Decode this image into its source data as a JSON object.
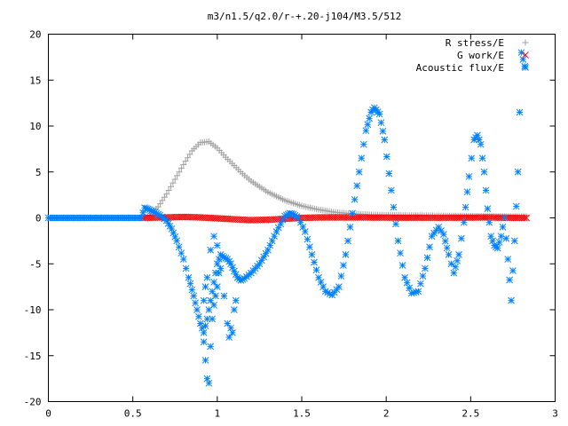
{
  "chart_data": {
    "type": "scatter",
    "title": "m3/n1.5/q2.0/r-+.20-j104/M3.5/512",
    "xlabel": "",
    "ylabel": "",
    "xlim": [
      0,
      3
    ],
    "ylim": [
      -20,
      20
    ],
    "xticks": [
      0,
      0.5,
      1,
      1.5,
      2,
      2.5,
      3
    ],
    "xtick_labels": [
      "0",
      "0.5",
      "1",
      "1.5",
      "2",
      "2.5",
      "3"
    ],
    "yticks": [
      -20,
      -15,
      -10,
      -5,
      0,
      5,
      10,
      15,
      20
    ],
    "ytick_labels": [
      "-20",
      "-15",
      "-10",
      "-5",
      "0",
      "5",
      "10",
      "15",
      "20"
    ],
    "grid": false,
    "legend_position": "top-right",
    "series": [
      {
        "name": "R stress/E",
        "marker": "plus",
        "color": "#a0a0a0",
        "x": [
          0.56,
          0.6,
          0.65,
          0.7,
          0.75,
          0.8,
          0.85,
          0.9,
          0.95,
          1.0,
          1.05,
          1.1,
          1.15,
          1.2,
          1.3,
          1.4,
          1.5,
          1.6,
          1.7,
          1.8,
          1.9,
          2.0,
          2.1,
          2.2,
          2.3,
          2.4,
          2.5,
          2.6,
          2.7,
          2.8,
          2.83
        ],
        "y": [
          0.0,
          0.3,
          1.2,
          2.6,
          4.2,
          5.8,
          7.3,
          8.2,
          8.3,
          7.6,
          6.6,
          5.7,
          4.8,
          4.0,
          2.8,
          1.9,
          1.3,
          0.9,
          0.6,
          0.45,
          0.35,
          0.3,
          0.28,
          0.26,
          0.24,
          0.22,
          0.2,
          0.18,
          0.16,
          0.15,
          0.15
        ]
      },
      {
        "name": "G work/E",
        "marker": "cross",
        "color": "#ff0000",
        "x": [
          0.56,
          0.7,
          0.8,
          0.9,
          1.0,
          1.1,
          1.2,
          1.3,
          1.4,
          1.5,
          1.6,
          1.7,
          1.8,
          2.0,
          2.2,
          2.4,
          2.6,
          2.7,
          2.83
        ],
        "y": [
          0.0,
          0.05,
          0.1,
          0.05,
          -0.05,
          -0.15,
          -0.25,
          -0.2,
          -0.1,
          0.0,
          0.05,
          0.05,
          0.05,
          0.03,
          0.02,
          0.02,
          0.05,
          0.02,
          0.0
        ]
      },
      {
        "name": "Acoustic flux/E",
        "marker": "star",
        "color": "#0080ff",
        "x": [
          0.0,
          0.1,
          0.2,
          0.3,
          0.4,
          0.5,
          0.55,
          0.57,
          0.6,
          0.63,
          0.66,
          0.7,
          0.73,
          0.76,
          0.8,
          0.83,
          0.86,
          0.88,
          0.9,
          0.92,
          0.94,
          0.96,
          0.98,
          1.0,
          1.02,
          1.04,
          1.06,
          1.08,
          1.1,
          1.12,
          1.14,
          1.16,
          1.2,
          1.25,
          1.3,
          1.35,
          1.4,
          1.43,
          1.45,
          1.48,
          1.52,
          1.56,
          1.6,
          1.64,
          1.68,
          1.72,
          1.76,
          1.8,
          1.84,
          1.88,
          1.91,
          1.93,
          1.96,
          1.99,
          2.03,
          2.07,
          2.11,
          2.15,
          2.19,
          2.23,
          2.27,
          2.31,
          2.34,
          2.37,
          2.4,
          2.43,
          2.46,
          2.49,
          2.52,
          2.54,
          2.56,
          2.58,
          2.6,
          2.62,
          2.64,
          2.66,
          2.68,
          2.7,
          2.72,
          2.74,
          2.76,
          2.78,
          2.8,
          2.82,
          0.92,
          0.93,
          0.94,
          0.95,
          0.96,
          0.97,
          0.98,
          0.99,
          1.0,
          1.01,
          0.92,
          0.93,
          0.94,
          0.96,
          0.98,
          1.0,
          1.02,
          1.04,
          1.06,
          1.08,
          1.1,
          1.07,
          1.09,
          1.11
        ],
        "y": [
          0.0,
          0.0,
          0.0,
          0.0,
          0.0,
          0.0,
          0.0,
          1.1,
          0.9,
          0.6,
          0.3,
          -0.3,
          -1.2,
          -2.5,
          -4.5,
          -6.5,
          -8.5,
          -10.0,
          -11.5,
          -12.5,
          -11.0,
          -9.0,
          -7.0,
          -5.0,
          -4.0,
          -4.3,
          -4.5,
          -5.0,
          -5.8,
          -6.5,
          -6.8,
          -6.6,
          -6.0,
          -5.0,
          -3.5,
          -1.5,
          0.2,
          0.5,
          0.4,
          0.0,
          -1.5,
          -4.0,
          -6.5,
          -8.0,
          -8.4,
          -7.5,
          -4.0,
          0.5,
          5.0,
          9.5,
          11.5,
          12.0,
          11.3,
          8.5,
          3.0,
          -2.5,
          -6.5,
          -8.2,
          -8.0,
          -5.5,
          -2.0,
          -1.0,
          -1.8,
          -4.0,
          -6.0,
          -4.0,
          -0.5,
          4.5,
          8.5,
          9.0,
          8.0,
          5.0,
          1.0,
          -2.0,
          -3.0,
          -3.3,
          -2.0,
          0.0,
          -4.5,
          -9.0,
          -2.5,
          5.0,
          18.0,
          16.5,
          -13.5,
          -15.5,
          -17.5,
          -18.0,
          -14.0,
          -11.0,
          -9.5,
          -8.5,
          -7.5,
          -6.0,
          -9.0,
          -7.5,
          -6.5,
          -3.5,
          -2.0,
          -3.0,
          -5.5,
          -8.5,
          -11.5,
          -12.0,
          -10.0,
          -13.0,
          -12.5,
          -9.0
        ]
      }
    ]
  }
}
